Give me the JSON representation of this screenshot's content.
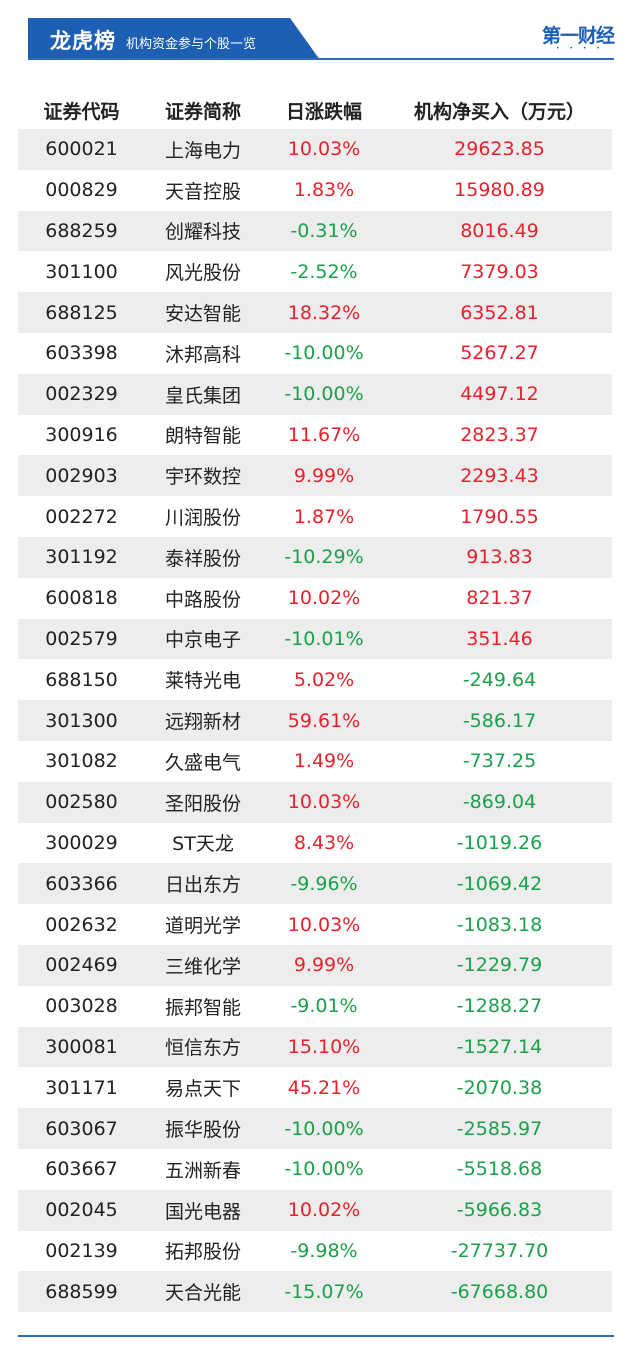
{
  "header": {
    "title": "龙虎榜",
    "subtitle": "机构资金参与个股一览",
    "logo": "第一财经"
  },
  "columns": [
    "证券代码",
    "证券简称",
    "日涨跌幅",
    "机构净买入（万元）"
  ],
  "colors": {
    "header_band": "#1d5fb2",
    "positive": "#e8212b",
    "negative": "#1aa14a",
    "row_alt": "#ededed"
  },
  "rows": [
    {
      "code": "600021",
      "name": "上海电力",
      "change": "10.03%",
      "net": "29623.85"
    },
    {
      "code": "000829",
      "name": "天音控股",
      "change": "1.83%",
      "net": "15980.89"
    },
    {
      "code": "688259",
      "name": "创耀科技",
      "change": "-0.31%",
      "net": "8016.49"
    },
    {
      "code": "301100",
      "name": "风光股份",
      "change": "-2.52%",
      "net": "7379.03"
    },
    {
      "code": "688125",
      "name": "安达智能",
      "change": "18.32%",
      "net": "6352.81"
    },
    {
      "code": "603398",
      "name": "沐邦高科",
      "change": "-10.00%",
      "net": "5267.27"
    },
    {
      "code": "002329",
      "name": "皇氏集团",
      "change": "-10.00%",
      "net": "4497.12"
    },
    {
      "code": "300916",
      "name": "朗特智能",
      "change": "11.67%",
      "net": "2823.37"
    },
    {
      "code": "002903",
      "name": "宇环数控",
      "change": "9.99%",
      "net": "2293.43"
    },
    {
      "code": "002272",
      "name": "川润股份",
      "change": "1.87%",
      "net": "1790.55"
    },
    {
      "code": "301192",
      "name": "泰祥股份",
      "change": "-10.29%",
      "net": "913.83"
    },
    {
      "code": "600818",
      "name": "中路股份",
      "change": "10.02%",
      "net": "821.37"
    },
    {
      "code": "002579",
      "name": "中京电子",
      "change": "-10.01%",
      "net": "351.46"
    },
    {
      "code": "688150",
      "name": "莱特光电",
      "change": "5.02%",
      "net": "-249.64"
    },
    {
      "code": "301300",
      "name": "远翔新材",
      "change": "59.61%",
      "net": "-586.17"
    },
    {
      "code": "301082",
      "name": "久盛电气",
      "change": "1.49%",
      "net": "-737.25"
    },
    {
      "code": "002580",
      "name": "圣阳股份",
      "change": "10.03%",
      "net": "-869.04"
    },
    {
      "code": "300029",
      "name": "ST天龙",
      "change": "8.43%",
      "net": "-1019.26"
    },
    {
      "code": "603366",
      "name": "日出东方",
      "change": "-9.96%",
      "net": "-1069.42"
    },
    {
      "code": "002632",
      "name": "道明光学",
      "change": "10.03%",
      "net": "-1083.18"
    },
    {
      "code": "002469",
      "name": "三维化学",
      "change": "9.99%",
      "net": "-1229.79"
    },
    {
      "code": "003028",
      "name": "振邦智能",
      "change": "-9.01%",
      "net": "-1288.27"
    },
    {
      "code": "300081",
      "name": "恒信东方",
      "change": "15.10%",
      "net": "-1527.14"
    },
    {
      "code": "301171",
      "name": "易点天下",
      "change": "45.21%",
      "net": "-2070.38"
    },
    {
      "code": "603067",
      "name": "振华股份",
      "change": "-10.00%",
      "net": "-2585.97"
    },
    {
      "code": "603667",
      "name": "五洲新春",
      "change": "-10.00%",
      "net": "-5518.68"
    },
    {
      "code": "002045",
      "name": "国光电器",
      "change": "10.02%",
      "net": "-5966.83"
    },
    {
      "code": "002139",
      "name": "拓邦股份",
      "change": "-9.98%",
      "net": "-27737.70"
    },
    {
      "code": "688599",
      "name": "天合光能",
      "change": "-15.07%",
      "net": "-67668.80"
    }
  ]
}
